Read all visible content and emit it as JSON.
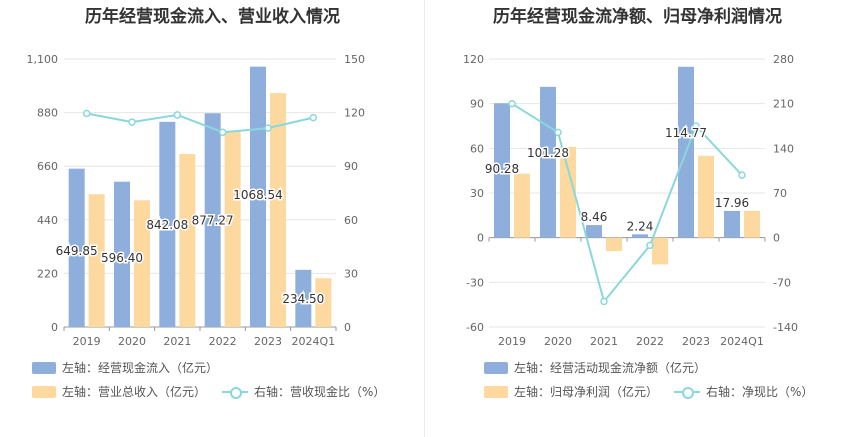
{
  "chart_data": [
    {
      "type": "bar",
      "title": "历年经营现金流入、营业收入情况",
      "categories": [
        "2019",
        "2020",
        "2021",
        "2022",
        "2023",
        "2024Q1"
      ],
      "left_axis": {
        "ticks": [
          "0",
          "220",
          "440",
          "660",
          "880",
          "1,100"
        ],
        "range": [
          0,
          1100
        ]
      },
      "right_axis": {
        "ticks": [
          "0",
          "30",
          "60",
          "90",
          "120",
          "150"
        ],
        "range": [
          0,
          150
        ]
      },
      "series": [
        {
          "name": "左轴：经营现金流入（亿元）",
          "kind": "bar",
          "axis": "left",
          "color": "#8eaedb",
          "values": [
            649.85,
            596.4,
            842.08,
            877.27,
            1068.54,
            234.5
          ],
          "labels": [
            "649.85",
            "596.40",
            "842.08",
            "877.27",
            "1068.54",
            "234.50"
          ]
        },
        {
          "name": "左轴：营业总收入（亿元）",
          "kind": "bar",
          "axis": "left",
          "color": "#fdd9a0",
          "values": [
            545,
            520,
            710,
            805,
            960,
            200
          ]
        },
        {
          "name": "右轴：营收现金比（%）",
          "kind": "line",
          "axis": "right",
          "color": "#8ad7dc",
          "values": [
            119.5,
            114.7,
            118.7,
            109,
            111.3,
            117.2
          ]
        }
      ],
      "grid": true,
      "legend": "bottom"
    },
    {
      "type": "bar",
      "title": "历年经营现金流净额、归母净利润情况",
      "categories": [
        "2019",
        "2020",
        "2021",
        "2022",
        "2023",
        "2024Q1"
      ],
      "left_axis": {
        "ticks": [
          "-60",
          "-30",
          "0",
          "30",
          "60",
          "90",
          "120"
        ],
        "range": [
          -60,
          120
        ]
      },
      "right_axis": {
        "ticks": [
          "-140",
          "-70",
          "0",
          "70",
          "140",
          "210",
          "280"
        ],
        "range": [
          -140,
          280
        ]
      },
      "series": [
        {
          "name": "左轴：经营活动现金流净额（亿元）",
          "kind": "bar",
          "axis": "left",
          "color": "#8eaedb",
          "values": [
            90.28,
            101.28,
            8.46,
            2.24,
            114.77,
            17.96
          ],
          "labels": [
            "90.28",
            "101.28",
            "8.46",
            "2.24",
            "114.77",
            "17.96"
          ]
        },
        {
          "name": "左轴：归母净利润（亿元）",
          "kind": "bar",
          "axis": "left",
          "color": "#fdd9a0",
          "values": [
            43,
            61,
            -9,
            -18,
            55,
            18
          ]
        },
        {
          "name": "右轴：净现比（%）",
          "kind": "line",
          "axis": "right",
          "color": "#8ad7dc",
          "values": [
            210,
            165,
            -100,
            -12,
            175,
            98
          ]
        }
      ],
      "grid": true,
      "legend": "bottom"
    }
  ]
}
